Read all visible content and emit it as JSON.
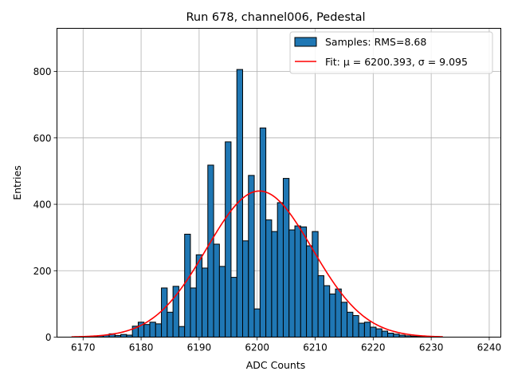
{
  "chart_data": {
    "type": "bar",
    "title": "Run 678, channel006, Pedestal",
    "xlabel": "ADC Counts",
    "ylabel": "Entries",
    "xlim": [
      6165.5,
      6242
    ],
    "ylim": [
      0,
      930
    ],
    "xticks": [
      6170,
      6180,
      6190,
      6200,
      6210,
      6220,
      6230,
      6240
    ],
    "yticks": [
      0,
      200,
      400,
      600,
      800
    ],
    "grid": true,
    "legend_position": "top-right",
    "bin_width": 1,
    "bins": [
      6168,
      6169,
      6170,
      6171,
      6172,
      6173,
      6174,
      6175,
      6176,
      6177,
      6178,
      6179,
      6180,
      6181,
      6182,
      6183,
      6184,
      6185,
      6186,
      6187,
      6188,
      6189,
      6190,
      6191,
      6192,
      6193,
      6194,
      6195,
      6196,
      6197,
      6198,
      6199,
      6200,
      6201,
      6202,
      6203,
      6204,
      6205,
      6206,
      6207,
      6208,
      6209,
      6210,
      6211,
      6212,
      6213,
      6214,
      6215,
      6216,
      6217,
      6218,
      6219,
      6220,
      6221,
      6222,
      6223,
      6224,
      6225,
      6226,
      6227,
      6228,
      6229,
      6230,
      6231
    ],
    "counts": [
      0,
      0,
      1,
      2,
      3,
      4,
      6,
      10,
      5,
      8,
      6,
      33,
      45,
      38,
      45,
      40,
      148,
      75,
      153,
      32,
      310,
      148,
      248,
      208,
      518,
      280,
      213,
      588,
      180,
      806,
      290,
      487,
      85,
      630,
      353,
      318,
      405,
      478,
      323,
      335,
      332,
      275,
      318,
      185,
      155,
      130,
      145,
      105,
      75,
      65,
      42,
      45,
      30,
      25,
      18,
      12,
      9,
      6,
      4,
      3,
      2,
      1,
      0,
      0
    ],
    "series": [
      {
        "name": "Samples: RMS=8.68",
        "kind": "histogram",
        "color": "#1f77b4"
      },
      {
        "name": "Fit: μ = 6200.393, σ = 9.095",
        "kind": "gaussian",
        "color": "#ff0000",
        "mu": 6200.393,
        "sigma": 9.095,
        "amplitude": 440,
        "x_range": [
          6168,
          6232
        ]
      }
    ]
  }
}
